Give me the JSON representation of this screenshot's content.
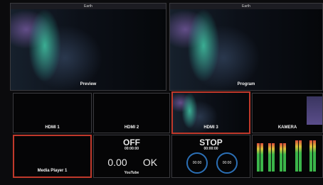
{
  "preview": {
    "title": "Earth",
    "label": "Preview"
  },
  "program": {
    "title": "Earth",
    "label": "Program"
  },
  "inputs": [
    {
      "label": "HDMI 1"
    },
    {
      "label": "HDMI 2"
    },
    {
      "label": "HDMI 3"
    },
    {
      "label": "KAMERA"
    },
    {
      "label": "Media Player 1"
    }
  ],
  "stream": {
    "status": "OFF",
    "time": "00:00:00",
    "value": "0.00",
    "health": "OK",
    "destination": "YouTube"
  },
  "record": {
    "status": "STOP",
    "time": "00:00:00",
    "timers": [
      "00:00",
      "00:00"
    ]
  }
}
